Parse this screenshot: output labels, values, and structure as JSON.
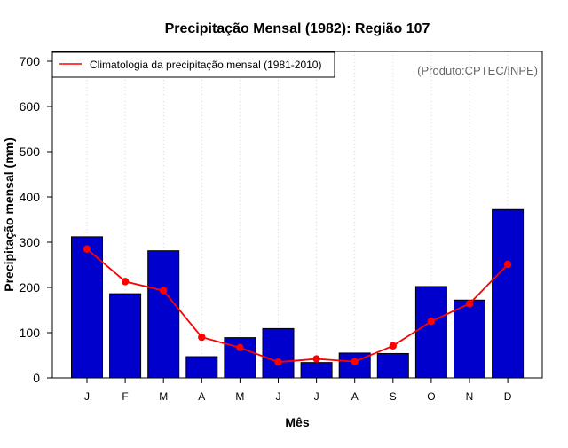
{
  "chart_data": {
    "type": "bar",
    "title": "Precipitação Mensal (1982): Região 107",
    "xlabel": "Mês",
    "ylabel": "Precipitação mensal (mm)",
    "categories": [
      "J",
      "F",
      "M",
      "A",
      "M",
      "J",
      "J",
      "A",
      "S",
      "O",
      "N",
      "D"
    ],
    "ylim": [
      0,
      700
    ],
    "yticks": [
      0,
      100,
      200,
      300,
      400,
      500,
      600,
      700
    ],
    "series": [
      {
        "name": "Precipitação mensal (1982)",
        "type": "bar",
        "color": "#0000CD",
        "values": [
          312,
          186,
          281,
          47,
          89,
          109,
          34,
          55,
          54,
          202,
          172,
          372
        ]
      },
      {
        "name": "Climatologia da precipitação mensal (1981-2010)",
        "type": "line",
        "color": "#FF0000",
        "values": [
          285,
          213,
          193,
          90,
          67,
          35,
          42,
          36,
          71,
          125,
          164,
          251
        ]
      }
    ],
    "legend": {
      "position": "top-left",
      "entries": [
        "Climatologia da precipitação mensal (1981-2010)"
      ]
    },
    "credit": "(Produto:CPTEC/INPE)",
    "grid": "vertical dotted"
  }
}
